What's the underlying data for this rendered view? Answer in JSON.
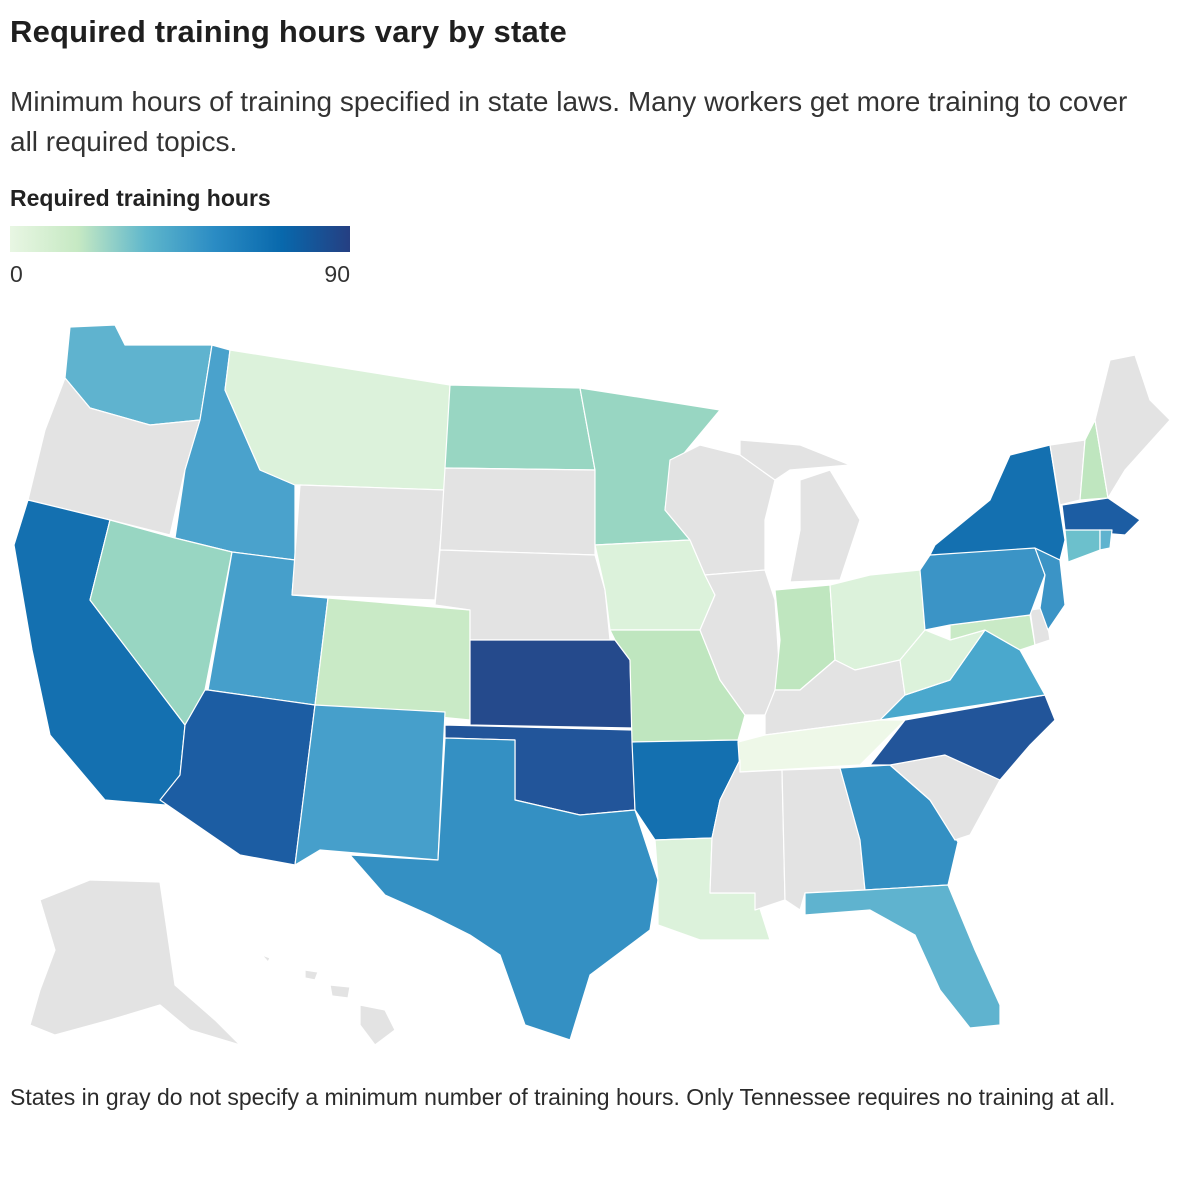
{
  "title": "Required training hours vary by state",
  "subtitle": "Minimum hours of training specified in state laws. Many workers get more training to cover all required topics.",
  "legend": {
    "title": "Required training hours",
    "min_label": "0",
    "max_label": "90",
    "gradient": [
      "#e8f6e3",
      "#c6e9c3",
      "#5fb7cc",
      "#2b8cc4",
      "#0868ac",
      "#253f82"
    ]
  },
  "colors": {
    "no_minimum": "#e3e3e3",
    "state_border": "#ffffff"
  },
  "states": [
    {
      "name": "Washington",
      "color": "#5fb3cf"
    },
    {
      "name": "Oregon",
      "color": "#e3e3e3"
    },
    {
      "name": "California",
      "color": "#1470b0"
    },
    {
      "name": "Idaho",
      "color": "#4aa2cc"
    },
    {
      "name": "Nevada",
      "color": "#98d6c2"
    },
    {
      "name": "Utah",
      "color": "#469fcb"
    },
    {
      "name": "Arizona",
      "color": "#1c5da3"
    },
    {
      "name": "Montana",
      "color": "#dcf2db"
    },
    {
      "name": "Wyoming",
      "color": "#e3e3e3"
    },
    {
      "name": "Colorado",
      "color": "#c9eac6"
    },
    {
      "name": "New Mexico",
      "color": "#469fcb"
    },
    {
      "name": "North Dakota",
      "color": "#98d6c2"
    },
    {
      "name": "South Dakota",
      "color": "#e3e3e3"
    },
    {
      "name": "Nebraska",
      "color": "#e3e3e3"
    },
    {
      "name": "Kansas",
      "color": "#254a8c"
    },
    {
      "name": "Oklahoma",
      "color": "#22559a"
    },
    {
      "name": "Texas",
      "color": "#3490c3"
    },
    {
      "name": "Minnesota",
      "color": "#98d6c2"
    },
    {
      "name": "Iowa",
      "color": "#dcf2db"
    },
    {
      "name": "Missouri",
      "color": "#bfe6bf"
    },
    {
      "name": "Arkansas",
      "color": "#1470b0"
    },
    {
      "name": "Louisiana",
      "color": "#dcf2db"
    },
    {
      "name": "Wisconsin",
      "color": "#e3e3e3"
    },
    {
      "name": "Illinois",
      "color": "#e3e3e3"
    },
    {
      "name": "Michigan",
      "color": "#e3e3e3"
    },
    {
      "name": "Indiana",
      "color": "#bfe6bf"
    },
    {
      "name": "Ohio",
      "color": "#dcf2db"
    },
    {
      "name": "Kentucky",
      "color": "#e3e3e3"
    },
    {
      "name": "Tennessee",
      "color": "#eef8e8"
    },
    {
      "name": "Mississippi",
      "color": "#e3e3e3"
    },
    {
      "name": "Alabama",
      "color": "#e3e3e3"
    },
    {
      "name": "Georgia",
      "color": "#3490c3"
    },
    {
      "name": "Florida",
      "color": "#5fb3cf"
    },
    {
      "name": "South Carolina",
      "color": "#e3e3e3"
    },
    {
      "name": "North Carolina",
      "color": "#22559a"
    },
    {
      "name": "Virginia",
      "color": "#4aa8cd"
    },
    {
      "name": "West Virginia",
      "color": "#dcf2db"
    },
    {
      "name": "Maryland",
      "color": "#c9eac6"
    },
    {
      "name": "Delaware",
      "color": "#e3e3e3"
    },
    {
      "name": "Pennsylvania",
      "color": "#3b94c6"
    },
    {
      "name": "New Jersey",
      "color": "#3b94c6"
    },
    {
      "name": "New York",
      "color": "#1470b0"
    },
    {
      "name": "Connecticut",
      "color": "#6cc0cc"
    },
    {
      "name": "Rhode Island",
      "color": "#5fb3cf"
    },
    {
      "name": "Massachusetts",
      "color": "#1c5da3"
    },
    {
      "name": "Vermont",
      "color": "#e3e3e3"
    },
    {
      "name": "New Hampshire",
      "color": "#bfe6bf"
    },
    {
      "name": "Maine",
      "color": "#e3e3e3"
    },
    {
      "name": "Alaska",
      "color": "#e3e3e3"
    },
    {
      "name": "Hawaii",
      "color": "#e3e3e3"
    }
  ],
  "note": "States in gray do not specify a minimum number of training hours. Only Tennessee requires no training at all."
}
